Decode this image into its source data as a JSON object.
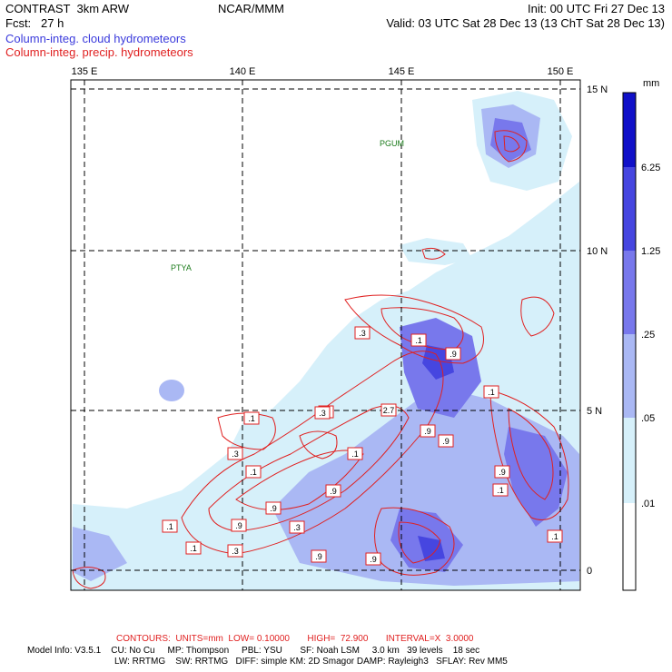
{
  "header": {
    "model": "CONTRAST  3km ARW",
    "org": "NCAR/MMM",
    "init": "Init: 00 UTC Fri 27 Dec 13",
    "fcst": "Fcst:   27 h",
    "valid": "Valid: 03 UTC Sat 28 Dec 13 (13 ChT Sat 28 Dec 13)",
    "field1": "Column-integ. cloud hydrometeors",
    "field2": "Column-integ. precip. hydrometeors"
  },
  "map": {
    "lon_labels": [
      "135 E",
      "140 E",
      "145 E",
      "150 E"
    ],
    "lat_labels": [
      "15 N",
      "10 N",
      "5 N",
      "0"
    ],
    "stations": [
      "PGUM",
      "PTYA"
    ],
    "contour_labels": [
      ".3",
      "2.7",
      ".3",
      ".1",
      ".1",
      ".9",
      ".1",
      ".3",
      ".1",
      ".3",
      ".9",
      ".9",
      ".3",
      ".1",
      ".3",
      ".9",
      ".9",
      ".9",
      ".9",
      ".1",
      ".9",
      ".1",
      ".1",
      ".9",
      ".1"
    ]
  },
  "colorbar": {
    "units": "mm",
    "labels": [
      "6.25",
      "1.25",
      ".25",
      ".05",
      ".01"
    ],
    "colors": [
      "#1010c8",
      "#4646e0",
      "#7878ec",
      "#aab8f4",
      "#d6f0fa",
      "#ffffff"
    ]
  },
  "footer": {
    "contours": "CONTOURS:  UNITS=mm  LOW= 0.10000       HIGH=  72.900       INTERVAL=X  3.0000",
    "model_info_1": "Model Info: V3.5.1    CU: No Cu     MP: Thompson     PBL: YSU       SF: Noah LSM     3.0 km   39 levels    18 sec",
    "model_info_2": "LW: RRTMG    SW: RRTMG   DIFF: simple KM: 2D Smagor DAMP: Rayleigh3   SFLAY: Rev MM5"
  }
}
